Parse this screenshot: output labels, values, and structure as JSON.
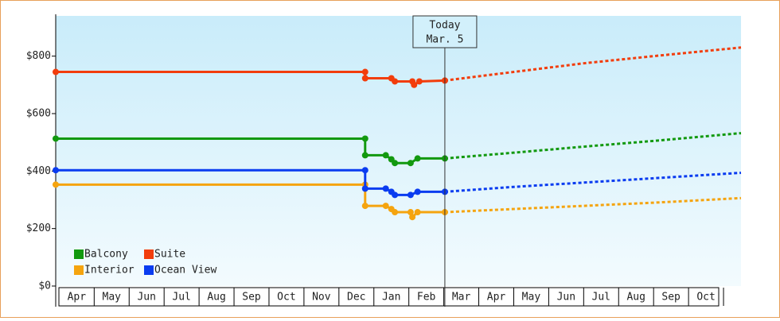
{
  "chart_data": {
    "type": "line",
    "xlim": [
      -0.1,
      19.5
    ],
    "ylim": [
      0,
      940
    ],
    "xticks": [
      {
        "value": 0.5,
        "label": "Apr"
      },
      {
        "value": 1.5,
        "label": "May"
      },
      {
        "value": 2.5,
        "label": "Jun"
      },
      {
        "value": 3.5,
        "label": "Jul"
      },
      {
        "value": 4.5,
        "label": "Aug"
      },
      {
        "value": 5.5,
        "label": "Sep"
      },
      {
        "value": 6.5,
        "label": "Oct"
      },
      {
        "value": 7.5,
        "label": "Nov"
      },
      {
        "value": 8.5,
        "label": "Dec"
      },
      {
        "value": 9.5,
        "label": "Jan"
      },
      {
        "value": 10.5,
        "label": "Feb"
      },
      {
        "value": 11.5,
        "label": "Mar"
      },
      {
        "value": 12.5,
        "label": "Apr"
      },
      {
        "value": 13.5,
        "label": "May"
      },
      {
        "value": 14.5,
        "label": "Jun"
      },
      {
        "value": 15.5,
        "label": "Jul"
      },
      {
        "value": 16.5,
        "label": "Aug"
      },
      {
        "value": 17.5,
        "label": "Sep"
      },
      {
        "value": 18.5,
        "label": "Oct"
      }
    ],
    "yticks": [
      {
        "value": 0,
        "label": "$0"
      },
      {
        "value": 200,
        "label": "$200"
      },
      {
        "value": 400,
        "label": "$400"
      },
      {
        "value": 600,
        "label": "$600"
      },
      {
        "value": 800,
        "label": "$800"
      }
    ],
    "today": {
      "x": 11.03,
      "text": "Today",
      "date": "Mar. 5"
    },
    "series": [
      {
        "name": "Balcony",
        "color": "#12990f",
        "x": [
          -0.1,
          8.75,
          8.75,
          9.34,
          9.5,
          9.6,
          10.05,
          10.25,
          11.03
        ],
        "values": [
          513,
          513,
          455,
          455,
          441,
          428,
          428,
          444,
          444
        ],
        "forecast_x": [
          11.03,
          13,
          15,
          17,
          19.5
        ],
        "forecast_values": [
          444,
          464,
          485,
          505,
          532
        ]
      },
      {
        "name": "Suite",
        "color": "#f23d0c",
        "x": [
          -0.1,
          8.75,
          8.75,
          9.5,
          9.6,
          10.1,
          10.15,
          10.3,
          11.03
        ],
        "values": [
          745,
          745,
          723,
          723,
          712,
          712,
          700,
          712,
          715
        ],
        "forecast_x": [
          11.03,
          13,
          15,
          17,
          19.5
        ],
        "forecast_values": [
          715,
          745,
          775,
          800,
          830
        ]
      },
      {
        "name": "Interior",
        "color": "#f5a40f",
        "x": [
          -0.1,
          8.75,
          8.75,
          9.34,
          9.5,
          9.6,
          10.05,
          10.1,
          10.25,
          11.03
        ],
        "values": [
          353,
          353,
          279,
          279,
          268,
          257,
          257,
          240,
          257,
          257
        ],
        "forecast_x": [
          11.03,
          13,
          15,
          17,
          19.5
        ],
        "forecast_values": [
          257,
          268,
          279,
          290,
          306
        ]
      },
      {
        "name": "Ocean View",
        "color": "#0a3cf0",
        "x": [
          -0.1,
          8.75,
          8.75,
          9.34,
          9.5,
          9.6,
          10.05,
          10.25,
          11.03
        ],
        "values": [
          403,
          403,
          339,
          339,
          328,
          317,
          317,
          328,
          328
        ],
        "forecast_x": [
          11.03,
          13,
          15,
          17,
          19.5
        ],
        "forecast_values": [
          328,
          345,
          360,
          375,
          394
        ]
      }
    ]
  }
}
